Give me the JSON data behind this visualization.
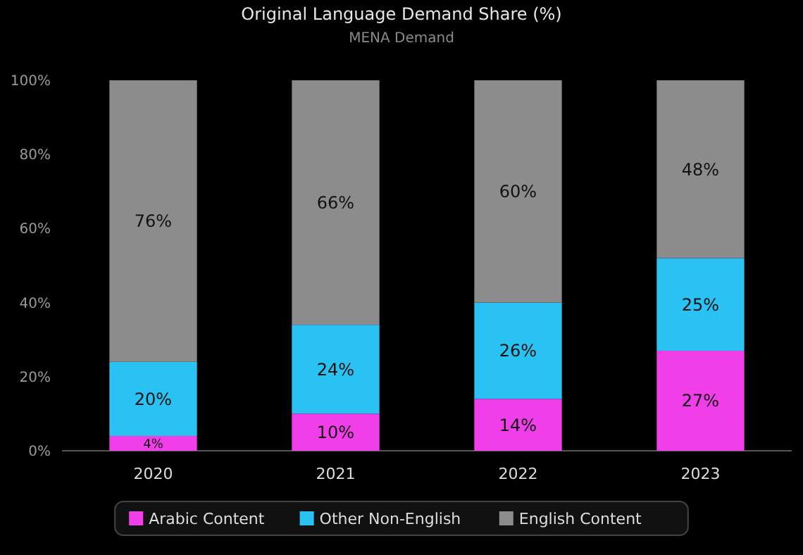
{
  "chart_data": {
    "type": "bar",
    "title": "Original Language Demand Share (%)",
    "subtitle": "MENA Demand",
    "categories": [
      "2020",
      "2021",
      "2022",
      "2023"
    ],
    "stacked": true,
    "ylim": [
      0,
      100
    ],
    "yticks": [
      {
        "value": 0,
        "label": "0%"
      },
      {
        "value": 20,
        "label": "20%"
      },
      {
        "value": 40,
        "label": "40%"
      },
      {
        "value": 60,
        "label": "60%"
      },
      {
        "value": 80,
        "label": "80%"
      },
      {
        "value": 100,
        "label": "100%"
      }
    ],
    "legend": "bottom",
    "series": [
      {
        "name": "Arabic Content",
        "color": "#f03ee8",
        "values": [
          4,
          10,
          14,
          27
        ],
        "value_labels": [
          "4%",
          "10%",
          "14%",
          "27%"
        ]
      },
      {
        "name": "Other Non-English",
        "color": "#29c2f2",
        "values": [
          20,
          24,
          26,
          25
        ],
        "value_labels": [
          "20%",
          "24%",
          "26%",
          "25%"
        ]
      },
      {
        "name": "English Content",
        "color": "#8c8c8c",
        "values": [
          76,
          66,
          60,
          48
        ],
        "value_labels": [
          "76%",
          "66%",
          "60%",
          "48%"
        ]
      }
    ]
  }
}
